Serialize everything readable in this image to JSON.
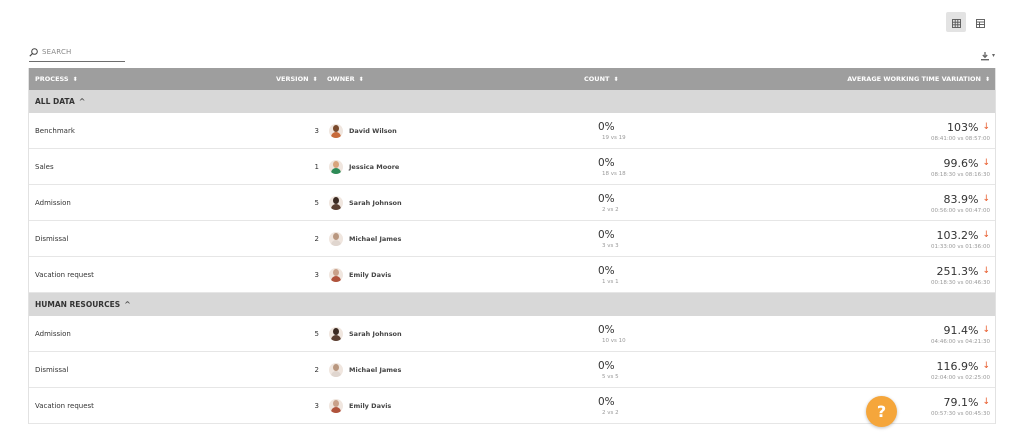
{
  "toolbar": {
    "view_grid_icon": "grid-view-icon",
    "view_table_icon": "table-view-icon",
    "download_icon": "download-icon"
  },
  "search": {
    "placeholder": "SEARCH"
  },
  "columns": {
    "process": "PROCESS",
    "version": "VERSION",
    "owner": "OWNER",
    "count": "COUNT",
    "avg": "AVERAGE WORKING TIME VARIATION"
  },
  "colors": {
    "header_bg": "#9e9e9e",
    "group_bg": "#d8d8d8",
    "down_arrow": "#e85a2a",
    "help_button": "#f5a63b"
  },
  "groups": [
    {
      "label": "ALL DATA",
      "rows": [
        {
          "process": "Benchmark",
          "version": "3",
          "owner": "David Wilson",
          "count": "0%",
          "count_sub": "19 vs 19",
          "avg": "103%",
          "avg_sub": "08:41:00 vs 08:57:00"
        },
        {
          "process": "Sales",
          "version": "1",
          "owner": "Jessica Moore",
          "count": "0%",
          "count_sub": "18 vs 18",
          "avg": "99.6%",
          "avg_sub": "08:18:30 vs 08:16:30"
        },
        {
          "process": "Admission",
          "version": "5",
          "owner": "Sarah Johnson",
          "count": "0%",
          "count_sub": "2 vs 2",
          "avg": "83.9%",
          "avg_sub": "00:56:00 vs 00:47:00"
        },
        {
          "process": "Dismissal",
          "version": "2",
          "owner": "Michael James",
          "count": "0%",
          "count_sub": "3 vs 3",
          "avg": "103.2%",
          "avg_sub": "01:33:00 vs 01:36:00"
        },
        {
          "process": "Vacation request",
          "version": "3",
          "owner": "Emily Davis",
          "count": "0%",
          "count_sub": "1 vs 1",
          "avg": "251.3%",
          "avg_sub": "00:18:30 vs 00:46:30"
        }
      ]
    },
    {
      "label": "HUMAN RESOURCES",
      "rows": [
        {
          "process": "Admission",
          "version": "5",
          "owner": "Sarah Johnson",
          "count": "0%",
          "count_sub": "10 vs 10",
          "avg": "91.4%",
          "avg_sub": "04:46:00 vs 04:21:30"
        },
        {
          "process": "Dismissal",
          "version": "2",
          "owner": "Michael James",
          "count": "0%",
          "count_sub": "5 vs 5",
          "avg": "116.9%",
          "avg_sub": "02:04:00 vs 02:25:00"
        },
        {
          "process": "Vacation request",
          "version": "3",
          "owner": "Emily Davis",
          "count": "0%",
          "count_sub": "2 vs 2",
          "avg": "79.1%",
          "avg_sub": "00:57:30 vs 00:45:30"
        }
      ]
    }
  ],
  "help": {
    "label": "?"
  }
}
